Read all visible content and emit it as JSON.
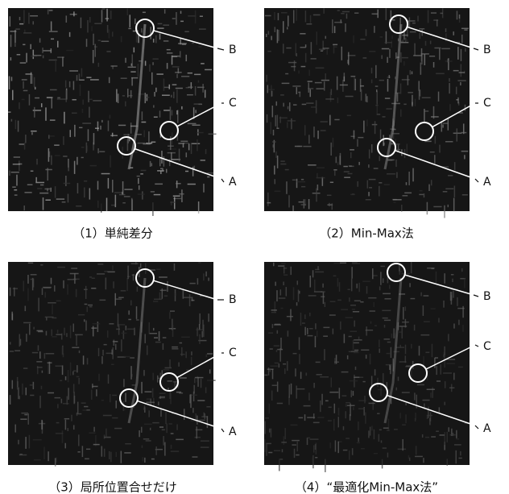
{
  "panels": [
    {
      "caption": "（1）単純差分",
      "callouts": [
        "B",
        "C",
        "A"
      ]
    },
    {
      "caption": "（2）Min-Max法",
      "callouts": [
        "B",
        "C",
        "A"
      ]
    },
    {
      "caption": "（3）局所位置合せだけ",
      "callouts": [
        "B",
        "C",
        "A"
      ]
    },
    {
      "caption": "（4）“最適化Min-Max法”",
      "callouts": [
        "B",
        "C",
        "A"
      ]
    }
  ]
}
